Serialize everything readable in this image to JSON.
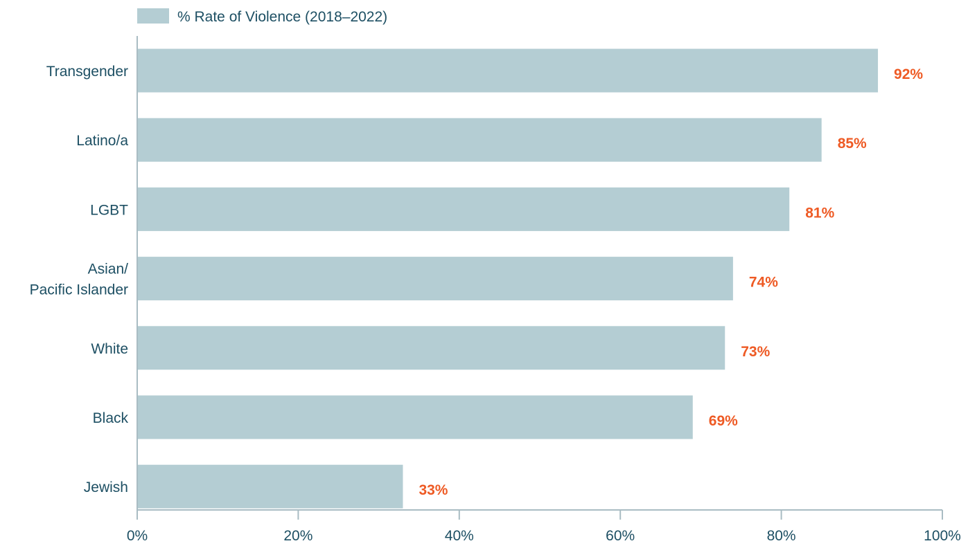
{
  "chart_data": {
    "type": "bar",
    "orientation": "horizontal",
    "title": "",
    "xlabel": "",
    "ylabel": "",
    "legend": {
      "position": "top-left",
      "entries": [
        "% Rate of Violence (2018–2022)"
      ]
    },
    "categories": [
      "Transgender",
      "Latino/a",
      "LGBT",
      "Asian/\nPacific Islander",
      "White",
      "Black",
      "Jewish"
    ],
    "series": [
      {
        "name": "% Rate of Violence (2018–2022)",
        "values": [
          92,
          85,
          81,
          74,
          73,
          69,
          33
        ]
      }
    ],
    "data_labels": [
      "92%",
      "85%",
      "81%",
      "74%",
      "73%",
      "69%",
      "33%"
    ],
    "xlim": [
      0,
      100
    ],
    "x_ticks": [
      0,
      20,
      40,
      60,
      80,
      100
    ],
    "x_tick_labels": [
      "0%",
      "20%",
      "40%",
      "60%",
      "80%",
      "100%"
    ],
    "grid": false,
    "colors": {
      "bar": "#b4cdd3",
      "label_value": "#ee5a24",
      "category_text": "#1d4f63",
      "axis": "#a9bcc3",
      "tick_text": "#1d4f63",
      "legend_text": "#1d4f63"
    }
  }
}
